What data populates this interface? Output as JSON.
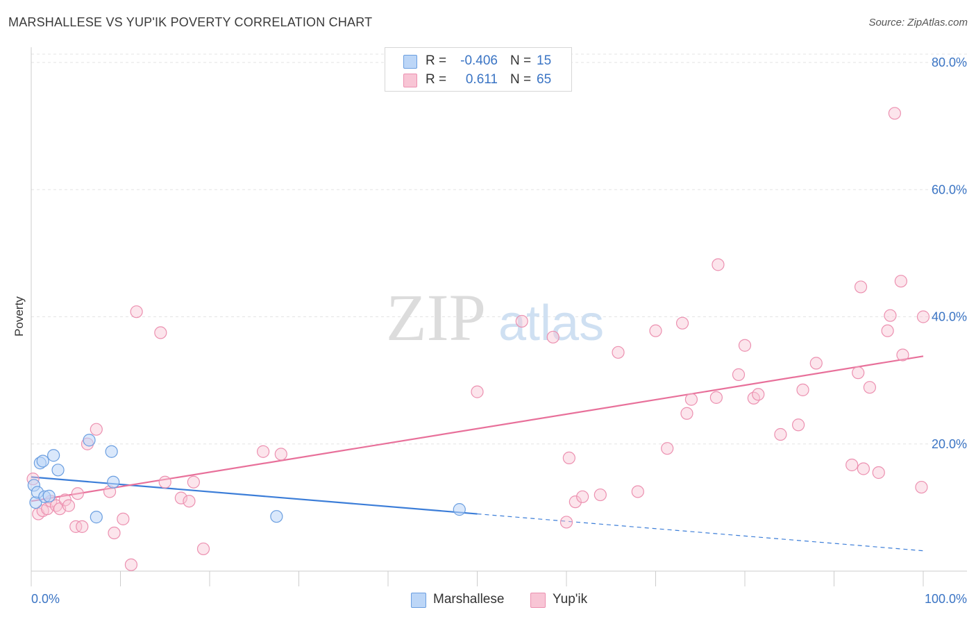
{
  "title": "MARSHALLESE VS YUP'IK POVERTY CORRELATION CHART",
  "source": "Source: ZipAtlas.com",
  "watermark": {
    "zip": "ZIP",
    "atlas": "atlas"
  },
  "colors": {
    "blue": "#3b7dd8",
    "blue_fill": "#bcd6f7",
    "pink": "#e8709a",
    "pink_fill": "#f8c5d5",
    "axis_label": "#3a74c4",
    "grid": "#e3e3e3"
  },
  "legend_top": {
    "rows": [
      {
        "label": "R =",
        "r": "-0.406",
        "n_label": "N =",
        "n": "15"
      },
      {
        "label": "R =",
        "r": "0.611",
        "n_label": "N =",
        "n": "65"
      }
    ]
  },
  "legend_bottom": [
    "Marshallese",
    "Yup'ik"
  ],
  "chart_data": {
    "type": "scatter",
    "title": "MARSHALLESE VS YUP'IK POVERTY CORRELATION CHART",
    "xlabel": "",
    "ylabel": "Poverty",
    "xlim": [
      0,
      100
    ],
    "ylim": [
      0,
      80
    ],
    "x_tick_labels": [
      "0.0%",
      "100.0%"
    ],
    "y_ticks": [
      20,
      40,
      60,
      80
    ],
    "y_tick_labels": [
      "20.0%",
      "40.0%",
      "60.0%",
      "80.0%"
    ],
    "grid": true,
    "legend_position": "top-center",
    "series": [
      {
        "name": "Marshallese",
        "color": "#3b7dd8",
        "points": [
          [
            0.3,
            13.5
          ],
          [
            0.5,
            10.8
          ],
          [
            0.7,
            12.4
          ],
          [
            1.0,
            17.0
          ],
          [
            1.3,
            17.3
          ],
          [
            1.5,
            11.7
          ],
          [
            2.0,
            11.8
          ],
          [
            2.5,
            18.2
          ],
          [
            3.0,
            15.9
          ],
          [
            6.5,
            20.6
          ],
          [
            7.3,
            8.5
          ],
          [
            9.0,
            18.8
          ],
          [
            9.2,
            14.0
          ],
          [
            27.5,
            8.6
          ],
          [
            48.0,
            9.7
          ]
        ],
        "trend": {
          "x": [
            0,
            50
          ],
          "y": [
            14.8,
            9.0
          ],
          "dashed_to": [
            100,
            3.2
          ]
        }
      },
      {
        "name": "Yup'ik",
        "color": "#e8709a",
        "points": [
          [
            0.2,
            14.5
          ],
          [
            0.8,
            9.0
          ],
          [
            1.3,
            9.5
          ],
          [
            1.8,
            9.8
          ],
          [
            2.2,
            11.0
          ],
          [
            2.8,
            10.3
          ],
          [
            3.2,
            9.8
          ],
          [
            3.8,
            11.2
          ],
          [
            4.2,
            10.3
          ],
          [
            5.0,
            7.0
          ],
          [
            5.2,
            12.2
          ],
          [
            5.7,
            7.0
          ],
          [
            6.3,
            20.0
          ],
          [
            7.3,
            22.3
          ],
          [
            8.8,
            12.5
          ],
          [
            9.3,
            6.0
          ],
          [
            10.3,
            8.2
          ],
          [
            11.2,
            1.0
          ],
          [
            11.8,
            40.8
          ],
          [
            14.5,
            37.5
          ],
          [
            15.0,
            14.0
          ],
          [
            16.8,
            11.5
          ],
          [
            17.7,
            11.0
          ],
          [
            18.2,
            14.0
          ],
          [
            19.3,
            3.5
          ],
          [
            26.0,
            18.8
          ],
          [
            28.0,
            18.4
          ],
          [
            50.0,
            28.2
          ],
          [
            55.0,
            39.3
          ],
          [
            58.5,
            36.8
          ],
          [
            60.0,
            7.7
          ],
          [
            60.3,
            17.8
          ],
          [
            61.0,
            10.9
          ],
          [
            61.8,
            11.7
          ],
          [
            63.8,
            12.0
          ],
          [
            65.8,
            34.4
          ],
          [
            68.0,
            12.5
          ],
          [
            70.0,
            37.8
          ],
          [
            71.3,
            19.3
          ],
          [
            73.0,
            39.0
          ],
          [
            73.5,
            24.8
          ],
          [
            74.0,
            27.0
          ],
          [
            76.8,
            27.3
          ],
          [
            77.0,
            48.2
          ],
          [
            79.3,
            30.9
          ],
          [
            80.0,
            35.5
          ],
          [
            81.0,
            27.2
          ],
          [
            81.5,
            27.8
          ],
          [
            84.0,
            21.5
          ],
          [
            86.0,
            23.0
          ],
          [
            86.5,
            28.5
          ],
          [
            88.0,
            32.7
          ],
          [
            92.0,
            16.7
          ],
          [
            92.7,
            31.2
          ],
          [
            93.0,
            44.7
          ],
          [
            93.3,
            16.1
          ],
          [
            94.0,
            28.9
          ],
          [
            95.0,
            15.5
          ],
          [
            96.0,
            37.8
          ],
          [
            96.3,
            40.2
          ],
          [
            96.8,
            72.0
          ],
          [
            97.5,
            45.6
          ],
          [
            97.7,
            34.0
          ],
          [
            100.0,
            40.0
          ],
          [
            99.8,
            13.2
          ]
        ],
        "trend": {
          "x": [
            0,
            100
          ],
          "y": [
            11.0,
            33.8
          ]
        }
      }
    ]
  }
}
